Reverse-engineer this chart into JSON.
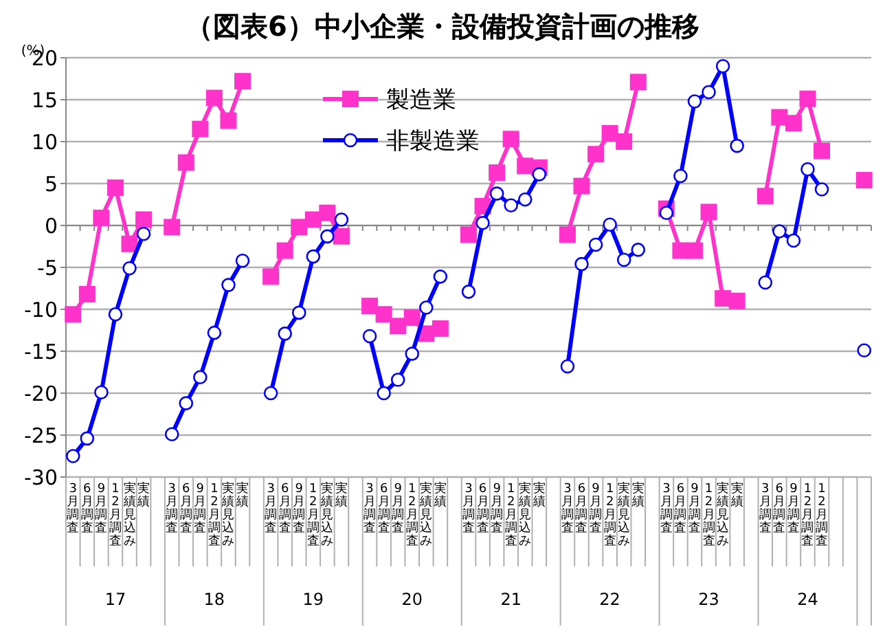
{
  "chart_data": {
    "type": "line",
    "title": "（図表6）中小企業・設備投資計画の推移",
    "ylabel": "(%)",
    "categories": [
      "3月調査",
      "6月調査",
      "9月調査",
      "12月調査",
      "実績見込み",
      "実績",
      null,
      "3月調査",
      "6月調査",
      "9月調査",
      "12月調査",
      "実績見込み",
      "実績",
      null,
      "3月調査",
      "6月調査",
      "9月調査",
      "12月調査",
      "実績見込み",
      "実績",
      null,
      "3月調査",
      "6月調査",
      "9月調査",
      "12月調査",
      "実績見込み",
      "実績",
      null,
      "3月調査",
      "6月調査",
      "9月調査",
      "12月調査",
      "実績見込み",
      "実績",
      null,
      "3月調査",
      "6月調査",
      "9月調査",
      "12月調査",
      "実績見込み",
      "実績",
      null,
      "3月調査",
      "6月調査",
      "9月調査",
      "12月調査",
      "実績見込み",
      "実績",
      null,
      "3月調査",
      "6月調査",
      "9月調査",
      "12月調査",
      "12月調査",
      null,
      null,
      null
    ],
    "annotations": [
      "17",
      "18",
      "19",
      "20",
      "21",
      "22",
      "23",
      "24"
    ],
    "series": [
      {
        "name": "製造業",
        "color": "#ff33cc",
        "marker": "square",
        "values": [
          -10.6,
          -8.2,
          0.9,
          4.5,
          -2.2,
          0.7,
          null,
          -0.2,
          7.5,
          11.5,
          15.2,
          12.5,
          17.2,
          null,
          -6.1,
          -3.0,
          -0.2,
          0.7,
          1.5,
          -1.3,
          null,
          -9.6,
          -10.6,
          -12.0,
          -11.0,
          -12.9,
          -12.3,
          null,
          -1.1,
          2.3,
          6.3,
          10.3,
          7.1,
          6.9,
          null,
          -1.1,
          4.7,
          8.5,
          11.0,
          10.0,
          17.1,
          null,
          2.0,
          -3.0,
          -3.0,
          1.6,
          -8.7,
          -9.0,
          null,
          3.5,
          12.9,
          12.2,
          15.1,
          8.9,
          null,
          null,
          5.4
        ]
      },
      {
        "name": "非製造業",
        "color": "#0000ff",
        "marker": "circle",
        "values": [
          -27.5,
          -25.4,
          -19.9,
          -10.6,
          -5.1,
          -1.0,
          null,
          -24.9,
          -21.2,
          -18.1,
          -12.8,
          -7.1,
          -4.2,
          null,
          -20.0,
          -12.9,
          -10.4,
          -3.7,
          -1.3,
          0.7,
          null,
          -13.2,
          -20.0,
          -18.4,
          -15.3,
          -9.8,
          -6.1,
          null,
          -7.9,
          0.3,
          3.8,
          2.4,
          3.1,
          6.1,
          null,
          -16.8,
          -4.6,
          -2.3,
          0.1,
          -4.1,
          -2.9,
          null,
          1.5,
          5.9,
          14.8,
          15.9,
          19.0,
          9.5,
          null,
          -6.8,
          -0.7,
          -1.8,
          6.7,
          4.3,
          null,
          null,
          -14.9
        ]
      }
    ],
    "ylim": [
      -30,
      20
    ],
    "yticks": [
      -30,
      -25,
      -20,
      -15,
      -10,
      -5,
      0,
      5,
      10,
      15,
      20
    ],
    "grid": "y",
    "legend": "top"
  }
}
